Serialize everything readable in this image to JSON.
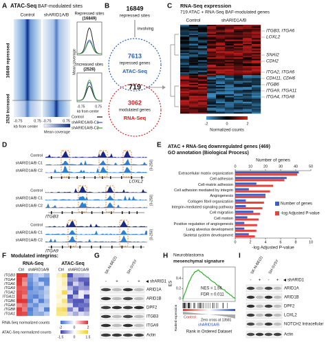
{
  "panels": {
    "A": {
      "letter": "A",
      "title": "ATAC-Seq",
      "subtitle": "BAF-modulated sites",
      "columns": [
        "Control",
        "shARID1A/B"
      ],
      "row_labels": [
        "16849 repressed",
        "2526 increased"
      ],
      "x_ticks": [
        -0.75,
        0.75
      ],
      "x_label": "kb from center",
      "colorbar_label": "Mean coverage",
      "profiles": [
        {
          "title": "Repressed sites",
          "count": "(16849)"
        },
        {
          "title": "Increased sites",
          "count": "(2526)"
        }
      ],
      "y_label": "Mean coverage",
      "legend": [
        "Control",
        "shARID1A/B-C1",
        "shARID1A/B-C2"
      ]
    },
    "B": {
      "letter": "B",
      "total": 16849,
      "total_label": "repressed sites",
      "connector": "involving",
      "atac_count": 7613,
      "atac_desc": "repressed genes",
      "atac_label": "ATAC-Seq",
      "overlap": 719,
      "rna_count": 3062,
      "rna_desc": "modulated genes",
      "rna_label": "RNA-Seq"
    },
    "C": {
      "letter": "C",
      "title": "RNA-Seq expression",
      "subtitle": "719 ATAC + RNA-Seq BAF-modulated genes",
      "columns": [
        "Control",
        "shARID1A/B"
      ],
      "genes": [
        "ITGB3, ITGA6",
        "LOXL2",
        "SNAI2",
        "CDH2",
        "ITGA2, ITGA6",
        "CDH11, CDH6",
        "ITGB6",
        "ITGA9, ITGA11",
        "ITGA4, ITGA8"
      ],
      "colorbar_ticks": [
        -2,
        0,
        2
      ],
      "colorbar_label": "Normalized counts"
    },
    "D": {
      "letter": "D",
      "tracks": [
        "Control",
        "shARID1A/B C1",
        "shARID1A/B C2"
      ],
      "range": "[0-250]",
      "genes": [
        "LOXL2",
        "ITGB3",
        "ITGA9"
      ]
    },
    "F": {
      "letter": "F",
      "title": "Modulated integrins:",
      "assays": [
        "RNA-Seq",
        "ATAC-Seq"
      ],
      "columns": [
        "Ctrl",
        "shARID1A/B"
      ],
      "genes": [
        "ITGB3",
        "ITGA4",
        "ITGA6",
        "ITGA9",
        "ITGA2",
        "ITGA11",
        "ITGB6",
        "ITGA8",
        "ITGB8",
        "ITGA1"
      ],
      "legend": [
        {
          "label": "RNA-Seq normalized counts",
          "ticks": [
            -2,
            0,
            2
          ]
        },
        {
          "label": "ATAC-Seq normalized counts",
          "ticks": [
            -1.5,
            0,
            1.5
          ]
        }
      ]
    },
    "G": {
      "letter": "G",
      "cell_lines": [
        "SK-N-BE(2)",
        "SH-SY5Y"
      ],
      "treatment": "shARID1",
      "signs": [
        "-",
        "+",
        "-",
        "+"
      ],
      "proteins": [
        "ARID1A",
        "ARID1B",
        "DPF2",
        "ITGB3",
        "ITGA9",
        "Actin"
      ]
    },
    "H": {
      "letter": "H",
      "title": "Neuroblastoma",
      "subtitle": "mesenchymal signature",
      "y_label": "ES",
      "y_ticks": [
        0,
        0.2,
        0.4
      ],
      "nes": "NES = 1.56",
      "fdr": "FDR = 0.011",
      "low_label": "Control",
      "high_label": "shARID1A/B",
      "zero_cross": "Zero cross at 13581",
      "ranked_label": "Ranked expression",
      "x_label": "Rank in Ordered Dataset"
    },
    "I": {
      "letter": "I",
      "cell_lines": [
        "SK-N-BE(2)",
        "SH-SY5Y"
      ],
      "treatment": "shARID1",
      "signs": [
        "-",
        "+",
        "-",
        "+"
      ],
      "proteins": [
        "ARID1A",
        "ARID1B",
        "DPF2",
        "LOXL2",
        "NOTCH2 Intracellular",
        "Actin"
      ]
    }
  },
  "chart_data": {
    "type": "bar",
    "letter": "E",
    "title": "ATAC + RNA-Seq downregulated genes (469)",
    "subtitle": "GO annotation (Biological Process)",
    "categories": [
      "Extracellular matrix organization",
      "Cell adhesion",
      "Cell-matrix adhesion",
      "Cell adhesion mediated by integrin",
      "Angiogenesis",
      "Collagen fibril organization",
      "Integrin-mediated signaling pathway",
      "Cell migration",
      "Cell motion",
      "Positive regulation of angiogenesis",
      "Lung alveolus development",
      "Skeletal system development"
    ],
    "series": [
      {
        "name": "Number of genes",
        "color": "#3b5fc4",
        "axis": "x2",
        "values": [
          42,
          34,
          14,
          9,
          20,
          7,
          7,
          12,
          8,
          6,
          6,
          9
        ]
      },
      {
        "name": "-log Adjusted P-value",
        "color": "#e8413c",
        "values": [
          8.2,
          6.5,
          5.0,
          4.6,
          4.0,
          3.8,
          3.6,
          3.3,
          3.1,
          2.9,
          2.8,
          2.6
        ]
      }
    ],
    "x2label": "Number of genes",
    "x2lim": [
      0,
      50
    ],
    "x2ticks": [
      0,
      10,
      20,
      30,
      40,
      50
    ],
    "xlabel": "-log Adjusted P-value",
    "xlim": [
      0,
      10
    ],
    "xticks": [
      0,
      2,
      4,
      6,
      8,
      10
    ]
  }
}
